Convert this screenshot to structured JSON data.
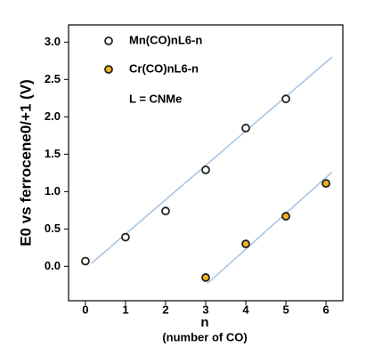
{
  "chart_data": {
    "type": "scatter",
    "ylabel": "E0 vs ferrocene0/+1 (V)",
    "xlabel": "n",
    "xlabel_note": "(number of CO)",
    "annotation": "L = CNMe",
    "xlim": [
      -0.42,
      6.42
    ],
    "ylim": [
      -0.46,
      3.23
    ],
    "xticks": [
      0,
      1,
      2,
      3,
      4,
      5,
      6
    ],
    "yticks": [
      {
        "value": 0,
        "label": "0.0"
      },
      0.5,
      {
        "value": 1,
        "label": "1.0"
      },
      1.5,
      {
        "value": 2,
        "label": "2.0"
      },
      2.5,
      {
        "value": 3,
        "label": "3.0"
      }
    ],
    "grid": false,
    "fit_color": "#a9c6e2",
    "series": [
      {
        "name": "Mn(CO)nL6-n",
        "color": "#ffffff",
        "x": [
          0,
          1,
          2,
          3,
          4,
          5
        ],
        "values": [
          0.07,
          0.39,
          0.74,
          1.29,
          1.85,
          2.24
        ],
        "fit_x": [
          0.15,
          6.15
        ],
        "fit_values": [
          0.04,
          2.8
        ]
      },
      {
        "name": "Cr(CO)nL6-n",
        "color": "#f2b21b",
        "x": [
          3,
          4,
          5,
          6
        ],
        "values": [
          -0.15,
          0.3,
          0.67,
          1.11
        ],
        "fit_x": [
          3.04,
          6.15
        ],
        "fit_values": [
          -0.23,
          1.26
        ]
      }
    ]
  }
}
